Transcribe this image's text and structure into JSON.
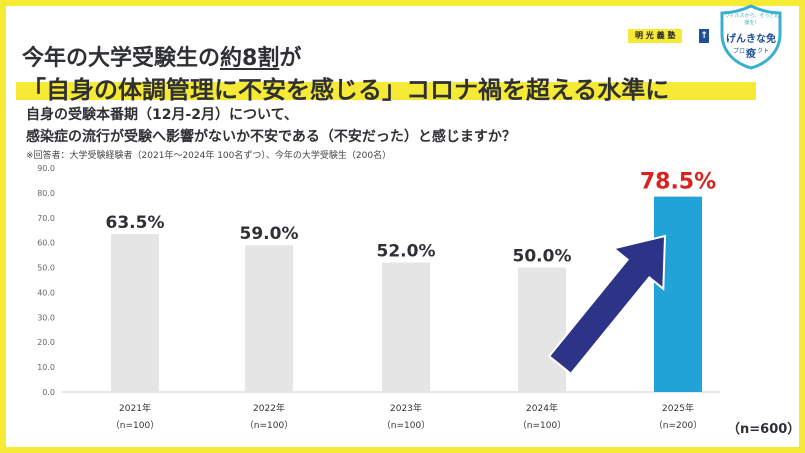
{
  "headline": {
    "line1_prefix": "今年の大学受験生の",
    "line1_emph": "約8割",
    "line1_suffix": "が",
    "line2": "「自身の体調管理に不安を感じる」コロナ禍を超える水準に"
  },
  "question": {
    "line1": "自身の受験本番期（12月-2月）について、",
    "line2": "感染症の流行が受験へ影響がないか不安である（不安だった）と感じますか？",
    "note": "※回答者：大学受験経験者（2021年～2024年 100名ずつ）、今年の大学受験生（200名）"
  },
  "brand": {
    "label": "明 光 義 塾",
    "badge": "↑",
    "logo_top": "ウィルスから、そっと応援を！",
    "logo_main": "げんきな免疫",
    "logo_sub": "プロジェクト"
  },
  "sample_total": "（n=600）",
  "chart_data": {
    "type": "bar",
    "categories": [
      "2021年",
      "2022年",
      "2023年",
      "2024年",
      "2025年"
    ],
    "sample_sizes": [
      "（n=100）",
      "（n=100）",
      "（n=100）",
      "（n=100）",
      "（n=200）"
    ],
    "values": [
      63.5,
      59.0,
      52.0,
      50.0,
      78.5
    ],
    "value_labels": [
      "63.5%",
      "59.0%",
      "52.0%",
      "50.0%",
      "78.5%"
    ],
    "ylim": [
      0,
      90
    ],
    "yticks": [
      "0.0",
      "10.0",
      "20.0",
      "30.0",
      "40.0",
      "50.0",
      "60.0",
      "70.0",
      "80.0",
      "90.0"
    ],
    "highlight_index": 4,
    "colors": {
      "bar": "#e6e5e5",
      "highlight": "#21a3d8",
      "highlight_label": "#d9221e",
      "label": "#2f3034",
      "arrow": "#2d3387"
    }
  }
}
